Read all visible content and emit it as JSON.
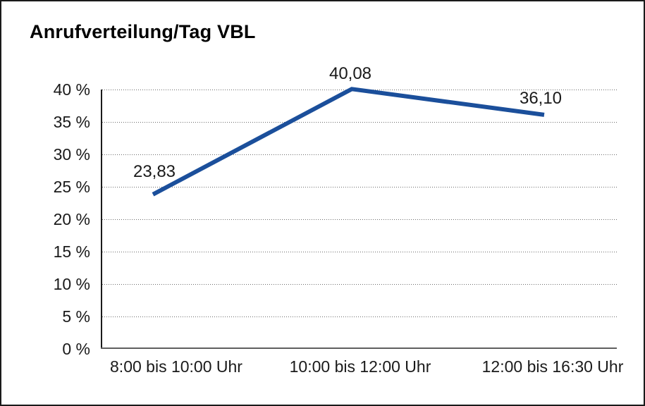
{
  "chart_data": {
    "type": "line",
    "title": "Anrufverteilung/Tag VBL",
    "categories": [
      "8:00 bis 10:00 Uhr",
      "10:00 bis 12:00 Uhr",
      "12:00 bis 16:30 Uhr"
    ],
    "series": [
      {
        "name": "Anrufverteilung",
        "values": [
          23.83,
          40.08,
          36.1
        ],
        "point_labels": [
          "23,83",
          "40,08",
          "36,10"
        ]
      }
    ],
    "xlabel": "",
    "ylabel": "",
    "ylim": [
      0,
      40
    ],
    "ytick_step": 5,
    "ytick_labels": [
      "0 %",
      "5 %",
      "10 %",
      "15 %",
      "20 %",
      "25 %",
      "30 %",
      "35 %",
      "40 %"
    ],
    "grid": "horizontal-dotted",
    "legend": "none",
    "colors": {
      "line": "#1b4f9b",
      "grid": "#6b6b6b",
      "y_axis": "#1a1a1a",
      "x_axis": "#5f5f5f",
      "text": "#1a1a1a"
    }
  }
}
